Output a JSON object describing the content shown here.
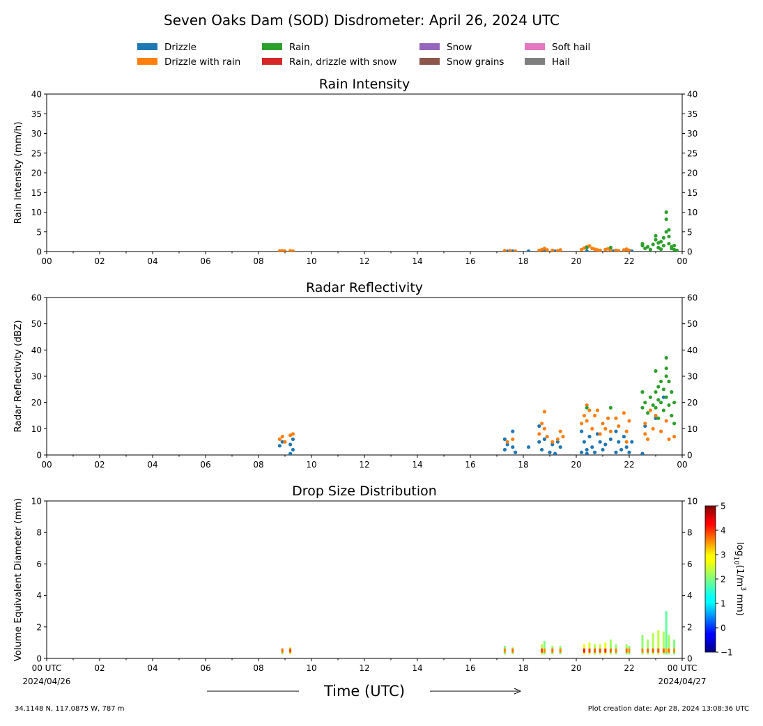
{
  "title": "Seven Oaks Dam (SOD) Disdrometer: April 26, 2024 UTC",
  "legend": [
    {
      "label": "Drizzle",
      "color": "#1f77b4"
    },
    {
      "label": "Rain",
      "color": "#2ca02c"
    },
    {
      "label": "Snow",
      "color": "#9467bd"
    },
    {
      "label": "Soft hail",
      "color": "#e377c2"
    },
    {
      "label": "Drizzle with rain",
      "color": "#ff7f0e"
    },
    {
      "label": "Rain, drizzle with snow",
      "color": "#d62728"
    },
    {
      "label": "Snow grains",
      "color": "#8c564b"
    },
    {
      "label": "Hail",
      "color": "#7f7f7f"
    }
  ],
  "hour_ticks": [
    "00",
    "02",
    "04",
    "06",
    "08",
    "10",
    "12",
    "14",
    "16",
    "18",
    "20",
    "22",
    "00"
  ],
  "panels": {
    "rain": {
      "title": "Rain Intensity",
      "ylabel": "Rain Intensity (mm/h)"
    },
    "refl": {
      "title": "Radar Reflectivity",
      "ylabel": "Radar Reflectivity (dBZ)"
    },
    "dsd": {
      "title": "Drop Size Distribution",
      "ylabel": "Volume Equivalent Diameter (mm)",
      "xtick_first": "00 UTC",
      "xtick_last": "00 UTC",
      "date_start": "2024/04/26",
      "date_end": "2024/04/27",
      "colorbar_label": "log10(1/m3 mm)",
      "colorbar_label_parts": {
        "base": "log",
        "sub": "10",
        "pre": "(1/m",
        "sup": "3",
        "post": " mm)"
      },
      "colorbar_ticks": [
        "5",
        "4",
        "3",
        "2",
        "1",
        "0",
        "−1"
      ]
    }
  },
  "xlabel": "Time (UTC)",
  "footer": {
    "location": "34.1148 N, 117.0875 W, 787 m",
    "created": "Plot creation date: Apr 28, 2024 13:08:36 UTC"
  },
  "chart_data": [
    {
      "type": "scatter",
      "title": "Rain Intensity",
      "xlabel": "",
      "ylabel": "Rain Intensity (mm/h)",
      "xlim": [
        0,
        24
      ],
      "ylim": [
        0,
        40
      ],
      "yticks": [
        0,
        5,
        10,
        15,
        20,
        25,
        30,
        35,
        40
      ],
      "series": [
        {
          "name": "Drizzle",
          "color": "#1f77b4",
          "points": [
            [
              8.9,
              0.05
            ],
            [
              9.2,
              0.05
            ],
            [
              17.4,
              0.05
            ],
            [
              17.6,
              0.1
            ],
            [
              18.2,
              0.1
            ],
            [
              18.8,
              0.1
            ],
            [
              19.2,
              0.1
            ],
            [
              20.4,
              0.1
            ],
            [
              20.9,
              0.1
            ],
            [
              21.4,
              0.1
            ],
            [
              22.1,
              0.1
            ]
          ]
        },
        {
          "name": "Drizzle with rain",
          "color": "#ff7f0e",
          "points": [
            [
              8.8,
              0.15
            ],
            [
              8.9,
              0.2
            ],
            [
              9.0,
              0.1
            ],
            [
              9.2,
              0.2
            ],
            [
              9.3,
              0.1
            ],
            [
              17.3,
              0.2
            ],
            [
              17.5,
              0.2
            ],
            [
              17.7,
              0.1
            ],
            [
              18.6,
              0.3
            ],
            [
              18.7,
              0.5
            ],
            [
              18.8,
              0.8
            ],
            [
              18.9,
              0.4
            ],
            [
              19.1,
              0.3
            ],
            [
              19.3,
              0.2
            ],
            [
              19.4,
              0.4
            ],
            [
              20.2,
              0.5
            ],
            [
              20.3,
              0.9
            ],
            [
              20.4,
              1.2
            ],
            [
              20.5,
              1.4
            ],
            [
              20.6,
              0.8
            ],
            [
              20.7,
              0.6
            ],
            [
              20.8,
              0.4
            ],
            [
              20.9,
              0.3
            ],
            [
              21.1,
              0.5
            ],
            [
              21.2,
              0.7
            ],
            [
              21.3,
              0.4
            ],
            [
              21.5,
              0.3
            ],
            [
              21.6,
              0.2
            ],
            [
              21.8,
              0.4
            ],
            [
              21.9,
              0.6
            ],
            [
              22.0,
              0.3
            ]
          ]
        },
        {
          "name": "Rain",
          "color": "#2ca02c",
          "points": [
            [
              20.4,
              1.0
            ],
            [
              21.3,
              1.0
            ],
            [
              22.5,
              1.5
            ],
            [
              22.5,
              2.0
            ],
            [
              22.6,
              0.8
            ],
            [
              22.7,
              1.2
            ],
            [
              22.8,
              0.5
            ],
            [
              22.9,
              1.8
            ],
            [
              23.0,
              3.0
            ],
            [
              23.0,
              4.0
            ],
            [
              23.1,
              2.2
            ],
            [
              23.1,
              1.0
            ],
            [
              23.2,
              0.6
            ],
            [
              23.2,
              2.5
            ],
            [
              23.3,
              3.5
            ],
            [
              23.3,
              1.5
            ],
            [
              23.4,
              5.0
            ],
            [
              23.4,
              8.2
            ],
            [
              23.4,
              10.0
            ],
            [
              23.5,
              5.5
            ],
            [
              23.5,
              3.8
            ],
            [
              23.5,
              2.0
            ],
            [
              23.6,
              1.2
            ],
            [
              23.6,
              0.8
            ],
            [
              23.7,
              1.5
            ],
            [
              23.7,
              0.5
            ],
            [
              23.8,
              0.3
            ]
          ]
        }
      ]
    },
    {
      "type": "scatter",
      "title": "Radar Reflectivity",
      "xlabel": "",
      "ylabel": "Radar Reflectivity (dBZ)",
      "xlim": [
        0,
        24
      ],
      "ylim": [
        0,
        60
      ],
      "yticks": [
        0,
        10,
        20,
        30,
        40,
        50,
        60
      ],
      "series": [
        {
          "name": "Drizzle",
          "color": "#1f77b4",
          "points": [
            [
              8.8,
              3.5
            ],
            [
              8.9,
              5
            ],
            [
              9.2,
              0.5
            ],
            [
              9.2,
              4
            ],
            [
              9.3,
              2
            ],
            [
              9.3,
              6
            ],
            [
              17.3,
              6
            ],
            [
              17.3,
              2
            ],
            [
              17.4,
              4
            ],
            [
              17.6,
              3
            ],
            [
              17.6,
              9
            ],
            [
              17.7,
              1
            ],
            [
              18.2,
              3
            ],
            [
              18.6,
              11
            ],
            [
              18.6,
              5
            ],
            [
              18.7,
              2
            ],
            [
              18.8,
              6
            ],
            [
              19.0,
              1
            ],
            [
              19.1,
              4
            ],
            [
              19.2,
              0.5
            ],
            [
              19.3,
              5
            ],
            [
              19.4,
              3
            ],
            [
              20.2,
              9
            ],
            [
              20.2,
              1
            ],
            [
              20.3,
              5
            ],
            [
              20.4,
              2
            ],
            [
              20.4,
              0.5
            ],
            [
              20.5,
              7
            ],
            [
              20.6,
              3
            ],
            [
              20.7,
              1
            ],
            [
              20.8,
              8
            ],
            [
              20.9,
              5
            ],
            [
              21.0,
              2
            ],
            [
              21.1,
              4
            ],
            [
              21.3,
              6
            ],
            [
              21.5,
              1
            ],
            [
              21.5,
              9
            ],
            [
              21.6,
              5
            ],
            [
              21.7,
              2
            ],
            [
              21.8,
              7
            ],
            [
              21.9,
              3
            ],
            [
              22.0,
              1
            ],
            [
              22.1,
              5
            ],
            [
              22.5,
              0.5
            ],
            [
              22.6,
              11
            ],
            [
              23.0,
              14
            ],
            [
              23.3,
              22
            ]
          ]
        },
        {
          "name": "Drizzle with rain",
          "color": "#ff7f0e",
          "points": [
            [
              8.8,
              6
            ],
            [
              8.9,
              7
            ],
            [
              9.0,
              5
            ],
            [
              9.2,
              7.5
            ],
            [
              9.3,
              8
            ],
            [
              17.4,
              5
            ],
            [
              17.6,
              6
            ],
            [
              18.6,
              8
            ],
            [
              18.7,
              12
            ],
            [
              18.8,
              16.5
            ],
            [
              18.8,
              10
            ],
            [
              18.9,
              7
            ],
            [
              19.1,
              5
            ],
            [
              19.3,
              6
            ],
            [
              19.4,
              9
            ],
            [
              19.5,
              7
            ],
            [
              20.2,
              12
            ],
            [
              20.3,
              15
            ],
            [
              20.4,
              19
            ],
            [
              20.4,
              13
            ],
            [
              20.5,
              17
            ],
            [
              20.6,
              10
            ],
            [
              20.7,
              15
            ],
            [
              20.8,
              17
            ],
            [
              20.9,
              8
            ],
            [
              21.0,
              12
            ],
            [
              21.1,
              10
            ],
            [
              21.2,
              14
            ],
            [
              21.3,
              9
            ],
            [
              21.5,
              14
            ],
            [
              21.6,
              11
            ],
            [
              21.8,
              16
            ],
            [
              21.9,
              9
            ],
            [
              21.9,
              5
            ],
            [
              22.0,
              13
            ],
            [
              22.6,
              8
            ],
            [
              22.6,
              12
            ],
            [
              22.7,
              6
            ],
            [
              22.8,
              17
            ],
            [
              22.9,
              10
            ],
            [
              23.0,
              15
            ],
            [
              23.2,
              9
            ],
            [
              23.4,
              13
            ],
            [
              23.5,
              6
            ],
            [
              23.7,
              7
            ]
          ]
        },
        {
          "name": "Rain",
          "color": "#2ca02c",
          "points": [
            [
              20.4,
              18
            ],
            [
              21.3,
              18
            ],
            [
              22.5,
              18
            ],
            [
              22.5,
              24
            ],
            [
              22.6,
              20
            ],
            [
              22.7,
              16
            ],
            [
              22.8,
              22
            ],
            [
              22.9,
              19
            ],
            [
              23.0,
              24
            ],
            [
              23.0,
              32
            ],
            [
              23.0,
              18
            ],
            [
              23.1,
              26
            ],
            [
              23.1,
              21
            ],
            [
              23.1,
              14
            ],
            [
              23.2,
              28
            ],
            [
              23.2,
              20
            ],
            [
              23.3,
              25
            ],
            [
              23.3,
              17
            ],
            [
              23.4,
              30
            ],
            [
              23.4,
              37
            ],
            [
              23.4,
              33
            ],
            [
              23.4,
              22
            ],
            [
              23.5,
              28
            ],
            [
              23.5,
              19
            ],
            [
              23.6,
              24
            ],
            [
              23.6,
              15
            ],
            [
              23.7,
              20
            ],
            [
              23.7,
              12
            ]
          ]
        }
      ]
    },
    {
      "type": "heatmap",
      "title": "Drop Size Distribution",
      "xlabel": "Time (UTC)",
      "ylabel": "Volume Equivalent Diameter (mm)",
      "xlim": [
        0,
        24
      ],
      "ylim": [
        0,
        10
      ],
      "yticks": [
        0,
        2,
        4,
        6,
        8,
        10
      ],
      "colorbar": {
        "label": "log10(1/m3 mm)",
        "range": [
          -1,
          5
        ],
        "ticks": [
          -1,
          0,
          1,
          2,
          3,
          4,
          5
        ]
      },
      "columns": [
        {
          "t": 8.9,
          "dmax": 0.6,
          "v": 3.0
        },
        {
          "t": 9.2,
          "dmax": 0.7,
          "v": 3.2
        },
        {
          "t": 17.3,
          "dmax": 0.8,
          "v": 2.8
        },
        {
          "t": 17.6,
          "dmax": 0.7,
          "v": 3.0
        },
        {
          "t": 18.7,
          "dmax": 0.9,
          "v": 3.2
        },
        {
          "t": 18.8,
          "dmax": 1.1,
          "v": 2.8
        },
        {
          "t": 19.1,
          "dmax": 0.8,
          "v": 3.0
        },
        {
          "t": 19.4,
          "dmax": 0.8,
          "v": 2.9
        },
        {
          "t": 20.3,
          "dmax": 0.9,
          "v": 3.5
        },
        {
          "t": 20.5,
          "dmax": 1.0,
          "v": 3.3
        },
        {
          "t": 20.7,
          "dmax": 0.9,
          "v": 3.1
        },
        {
          "t": 20.9,
          "dmax": 0.9,
          "v": 3.2
        },
        {
          "t": 21.1,
          "dmax": 1.0,
          "v": 3.4
        },
        {
          "t": 21.3,
          "dmax": 1.2,
          "v": 3.0
        },
        {
          "t": 21.5,
          "dmax": 0.9,
          "v": 2.9
        },
        {
          "t": 21.9,
          "dmax": 0.9,
          "v": 3.0
        },
        {
          "t": 22.0,
          "dmax": 0.8,
          "v": 2.8
        },
        {
          "t": 22.5,
          "dmax": 1.5,
          "v": 2.9
        },
        {
          "t": 22.7,
          "dmax": 1.2,
          "v": 3.0
        },
        {
          "t": 22.9,
          "dmax": 1.6,
          "v": 3.1
        },
        {
          "t": 23.1,
          "dmax": 1.8,
          "v": 3.2
        },
        {
          "t": 23.3,
          "dmax": 1.7,
          "v": 3.1
        },
        {
          "t": 23.4,
          "dmax": 3.0,
          "v": 2.6
        },
        {
          "t": 23.5,
          "dmax": 1.5,
          "v": 3.0
        },
        {
          "t": 23.7,
          "dmax": 1.2,
          "v": 2.8
        }
      ]
    }
  ]
}
